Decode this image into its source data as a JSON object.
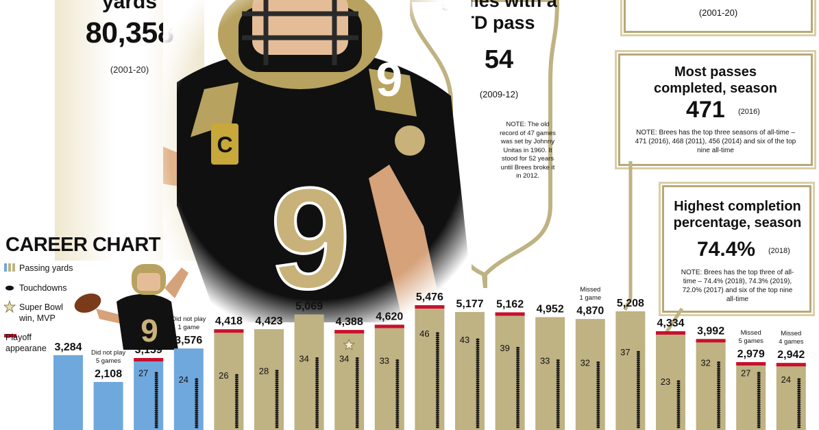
{
  "left_card": {
    "title_fragment": "yards",
    "value": "80,358",
    "years": "(2001-20)"
  },
  "center_card": {
    "title_line1": "games with a",
    "title_line2": "TD pass",
    "value": "54",
    "years": "(2009-12)",
    "note": "NOTE: The old record of 47 games was set by Johnny Unitas in 1960. It stood for 52 years until Brees broke it in 2012."
  },
  "top_right_card": {
    "years": "(2001-20)"
  },
  "passes_card": {
    "title": "Most passes completed, season",
    "value": "471",
    "year": "(2016)",
    "note": "NOTE: Brees has the top three seasons of all-time – 471 (2016), 468 (2011), 456 (2014) and six of the top nine all-time"
  },
  "completion_card": {
    "title": "Highest completion percentage, season",
    "value": "74.4%",
    "year": "(2018)",
    "note": "NOTE: Brees has the top three of all-time – 74.4% (2018), 74.3% (2019), 72.0% (2017) and six of the top nine all-time"
  },
  "career_chart": {
    "title": "CAREER CHART",
    "legend": [
      "Passing yards",
      "Touchdowns",
      "Super Bowl win, MVP",
      "Playoff appearane"
    ]
  },
  "colors": {
    "tan": "#bfb283",
    "tan_dark": "#a8996a",
    "blue": "#6fa8dc",
    "red": "#c8102e",
    "black": "#111111"
  },
  "chart_data": {
    "type": "bar",
    "series": [
      {
        "name": "Passing yards",
        "values": [
          3284,
          2108,
          3159,
          3576,
          4418,
          4423,
          5069,
          4388,
          4620,
          5476,
          5177,
          5162,
          4952,
          4870,
          5208,
          4334,
          3992,
          2979,
          2942
        ]
      },
      {
        "name": "Touchdowns",
        "values": [
          null,
          null,
          27,
          24,
          26,
          28,
          34,
          34,
          33,
          46,
          43,
          39,
          33,
          32,
          37,
          23,
          32,
          27,
          24
        ]
      }
    ],
    "value_labels": [
      "3,284",
      "2,108",
      "3,159",
      "3,576",
      "4,418",
      "4,423",
      "5,069",
      "4,388",
      "4,620",
      "5,476",
      "5,177",
      "5,162",
      "4,952",
      "4,870",
      "5,208",
      "4,334",
      "3,992",
      "2,979",
      "2,942"
    ],
    "playoff": [
      false,
      false,
      true,
      false,
      true,
      false,
      false,
      true,
      true,
      true,
      false,
      true,
      false,
      false,
      false,
      true,
      true,
      true,
      true
    ],
    "super_bowl_mvp": [
      false,
      false,
      false,
      false,
      false,
      false,
      false,
      true,
      false,
      false,
      false,
      false,
      false,
      false,
      false,
      false,
      false,
      false,
      false
    ],
    "team_color": [
      "blue",
      "blue",
      "blue",
      "blue",
      "tan",
      "tan",
      "tan",
      "tan",
      "tan",
      "tan",
      "tan",
      "tan",
      "tan",
      "tan",
      "tan",
      "tan",
      "tan",
      "tan",
      "tan"
    ],
    "bar_notes": [
      "",
      "Did not play 5 games",
      "",
      "Did not play 1 game",
      "",
      "",
      "",
      "",
      "",
      "",
      "",
      "",
      "",
      "Missed 1 game",
      "",
      "",
      "",
      "Missed 5 games",
      "Missed 4 games"
    ]
  }
}
